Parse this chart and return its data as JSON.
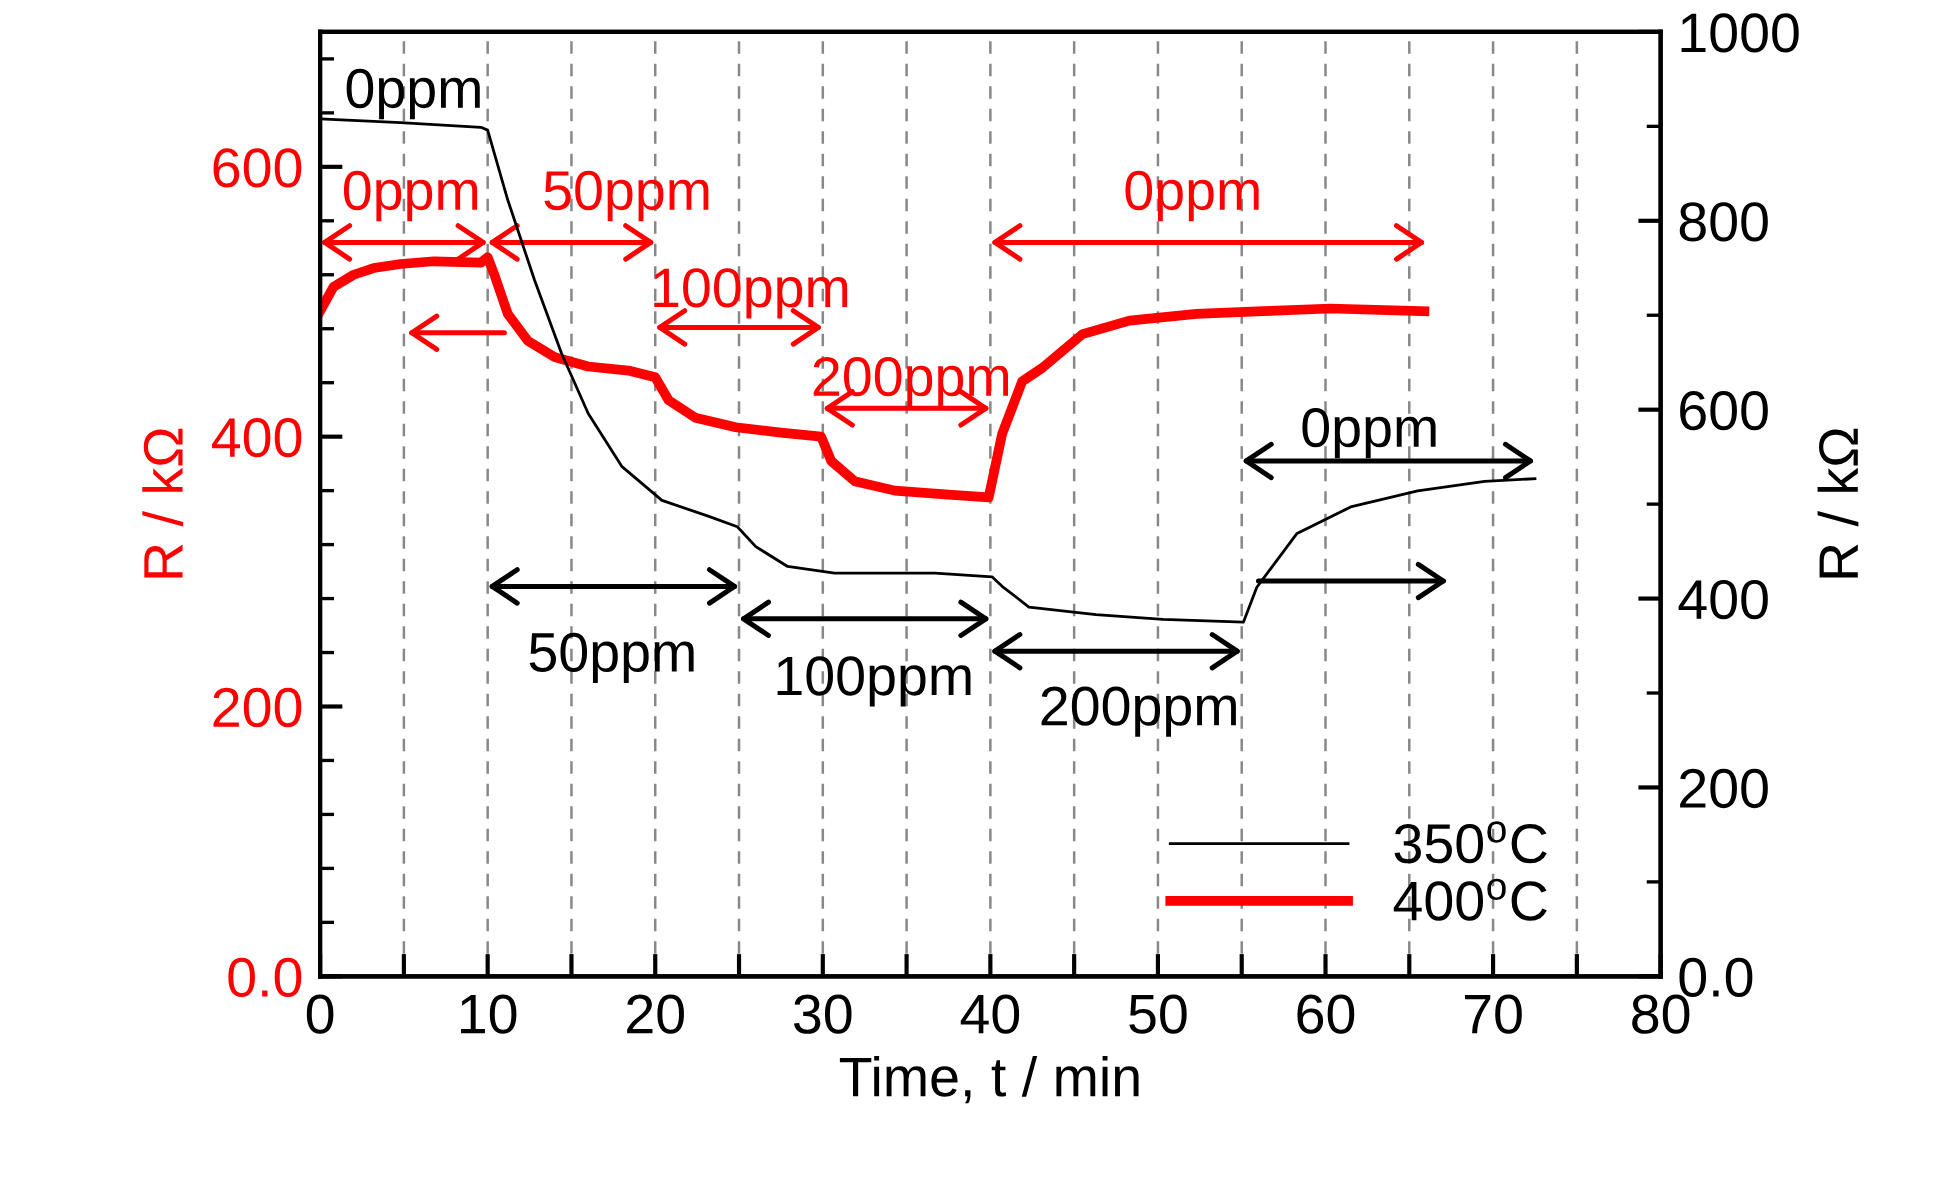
{
  "chart_data": {
    "type": "line",
    "xlabel": "Time, t / min",
    "ylabel": "R / kΩ",
    "y2label": "R / kΩ",
    "xlim": [
      0,
      80
    ],
    "xticks": [
      0,
      {
        "value": 5,
        "label": null
      },
      10,
      {
        "value": 15,
        "label": null
      },
      20,
      {
        "value": 25,
        "label": null
      },
      30,
      {
        "value": 35,
        "label": null
      },
      40,
      {
        "value": 45,
        "label": null
      },
      50,
      {
        "value": 55,
        "label": null
      },
      60,
      {
        "value": 65,
        "label": null
      },
      70,
      {
        "value": 75,
        "label": null
      },
      80
    ],
    "ylim": [
      0,
      700
    ],
    "yticks": [
      {
        "value": 0,
        "label": "0.0"
      },
      200,
      400,
      600
    ],
    "y2lim": [
      0,
      1000
    ],
    "y2ticks": [
      {
        "value": 0,
        "label": "0.0"
      },
      200,
      400,
      600,
      800,
      1000
    ],
    "grid": "x",
    "legend": "bottom right",
    "line_style": "solid",
    "marker": "none",
    "series": [
      {
        "name": "350$^{o}$C",
        "color": "#000000",
        "axis": "y2",
        "x": [
          0,
          4.8,
          9.6,
          10.0,
          11.2,
          12.8,
          14.4,
          16.0,
          18.0,
          20.4,
          23.2,
          24.9,
          26.0,
          27.9,
          30.7,
          36.7,
          40.1,
          40.7,
          42.3,
          46.3,
          50.3,
          55.1,
          55.9,
          58.3,
          61.5,
          65.5,
          69.5,
          72.5
        ],
        "values": [
          908,
          904,
          899,
          896,
          822,
          737,
          660,
          596,
          540,
          504,
          487,
          476,
          455,
          434,
          427,
          427,
          423,
          413,
          391,
          383,
          378,
          375,
          412,
          469,
          497,
          514,
          524,
          527
        ]
      },
      {
        "name": "400$^{o}$C",
        "color": "#ff0000",
        "axis": "y",
        "x": [
          0,
          0.8,
          2.0,
          3.2,
          4.8,
          6.8,
          9.6,
          10.0,
          10.4,
          11.2,
          12.4,
          14.0,
          16.0,
          18.4,
          20.0,
          20.8,
          22.4,
          24.8,
          27.5,
          29.9,
          30.5,
          31.9,
          34.3,
          37.5,
          39.9,
          40.7,
          41.9,
          43.1,
          45.5,
          48.3,
          52.3,
          56.3,
          60.3,
          65.9
        ],
        "values": [
          493,
          511,
          520,
          525,
          528,
          530,
          529,
          533,
          520,
          491,
          471,
          459,
          452,
          449,
          444,
          427,
          414,
          407,
          403,
          400,
          382,
          367,
          360,
          357,
          355,
          402,
          441,
          451,
          476,
          486,
          491,
          493,
          495,
          493
        ]
      }
    ],
    "annotations": [
      "0ppm",
      "0ppm",
      "50ppm",
      "100ppm",
      "200ppm",
      "0ppm",
      "0ppm",
      "50ppm",
      "100ppm",
      "200ppm"
    ]
  }
}
